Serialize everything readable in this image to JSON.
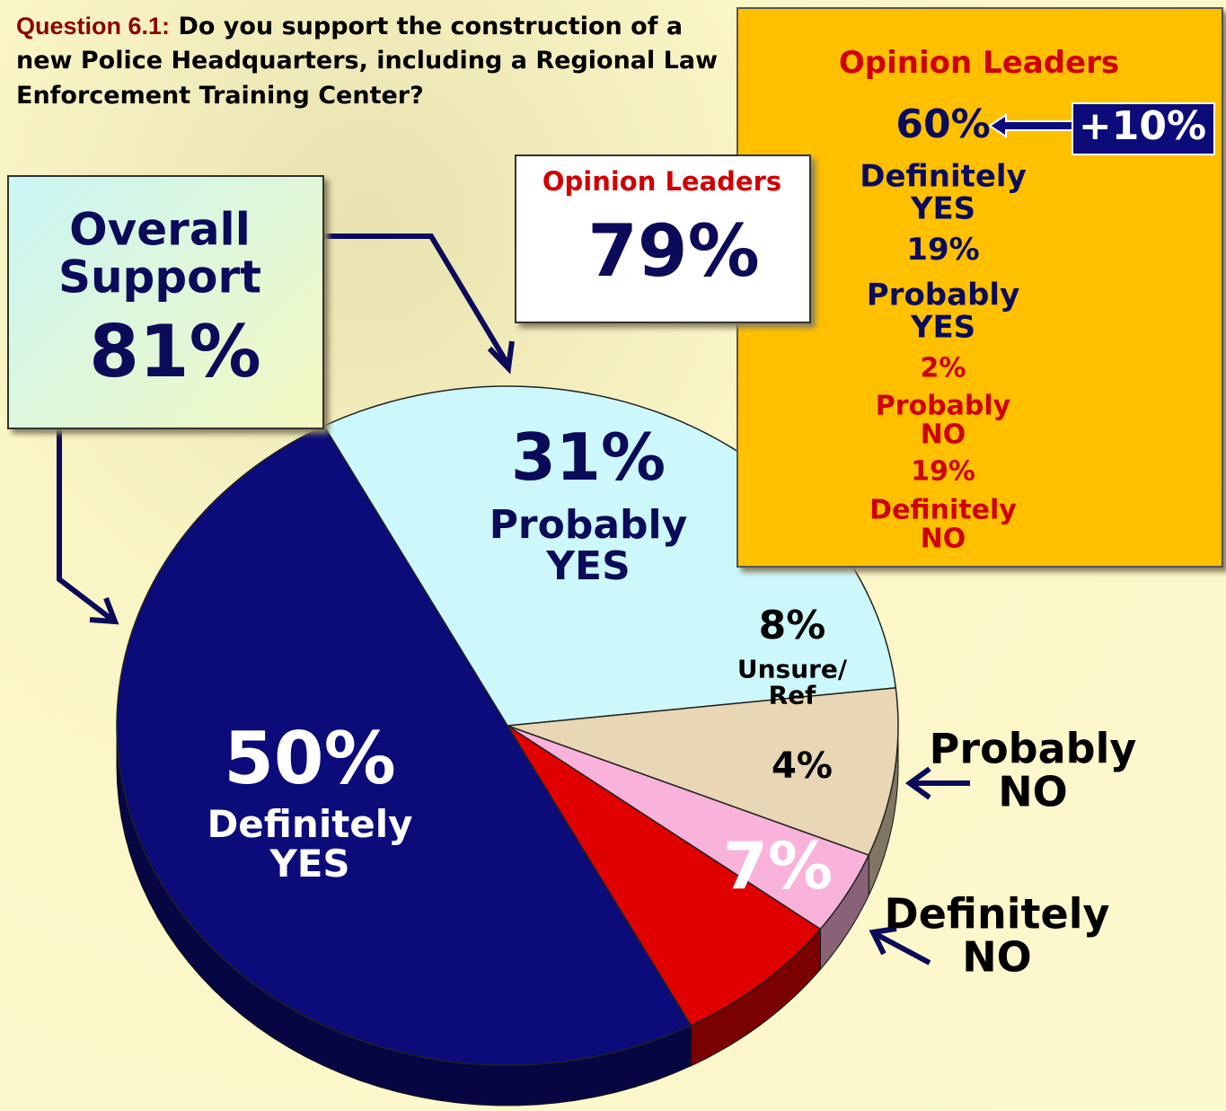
{
  "question": {
    "label": "Question 6.1:",
    "text": "Do you support the construction of a new Police Headquarters, including a Regional Law Enforcement Training Center?"
  },
  "overall_support": {
    "title": "Overall Support",
    "value": "81%"
  },
  "opinion_leaders_total": {
    "title": "Opinion Leaders",
    "value": "79%"
  },
  "opinion_leaders_breakdown": {
    "title": "Opinion Leaders",
    "change": "+10%",
    "items": [
      {
        "value": "60%",
        "label": "Definitely YES"
      },
      {
        "value": "19%",
        "label": "Probably YES"
      },
      {
        "value": "2%",
        "label": "Probably NO"
      },
      {
        "value": "19%",
        "label": "Definitely NO"
      }
    ]
  },
  "chart_data": {
    "type": "pie",
    "categories": [
      "Probably YES",
      "Unsure/ Ref",
      "Probably NO",
      "Definitely NO",
      "Definitely YES"
    ],
    "values": [
      31,
      8,
      4,
      7,
      50
    ],
    "value_labels": [
      "31%",
      "8%",
      "4%",
      "7%",
      "50%"
    ],
    "colors": [
      "#ccf8fc",
      "#e8d6b4",
      "#f9b2da",
      "#e00000",
      "#0b0b7a"
    ]
  }
}
